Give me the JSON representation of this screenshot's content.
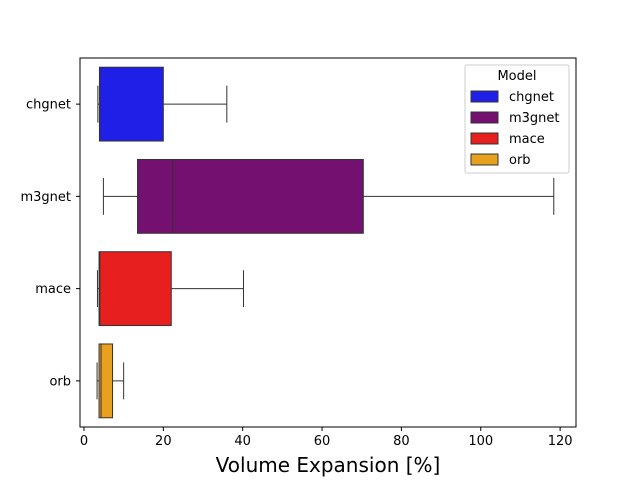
{
  "chart_data": {
    "type": "boxplot",
    "orientation": "horizontal",
    "title": "",
    "xlabel": "Volume Expansion [%]",
    "ylabel": "",
    "xlim": [
      -1,
      124
    ],
    "xticks": [
      0,
      20,
      40,
      60,
      80,
      100,
      120
    ],
    "grid": false,
    "legend": {
      "title": "Model",
      "placement": "top-right"
    },
    "categories": [
      "chgnet",
      "m3gnet",
      "mace",
      "orb"
    ],
    "series": [
      {
        "name": "chgnet",
        "color": "#1f1fe8",
        "whisker_low": 3.5,
        "q1": 3.9,
        "median": 4.0,
        "q3": 20.0,
        "whisker_high": 36.0
      },
      {
        "name": "m3gnet",
        "color": "#731070",
        "whisker_low": 4.9,
        "q1": 13.5,
        "median": 22.3,
        "q3": 70.4,
        "whisker_high": 118.4
      },
      {
        "name": "mace",
        "color": "#e81f1f",
        "whisker_low": 3.4,
        "q1": 3.8,
        "median": 4.0,
        "q3": 22.0,
        "whisker_high": 40.2
      },
      {
        "name": "orb",
        "color": "#e8a01f",
        "whisker_low": 3.3,
        "q1": 3.8,
        "median": 4.3,
        "q3": 7.2,
        "whisker_high": 10.0
      }
    ]
  }
}
